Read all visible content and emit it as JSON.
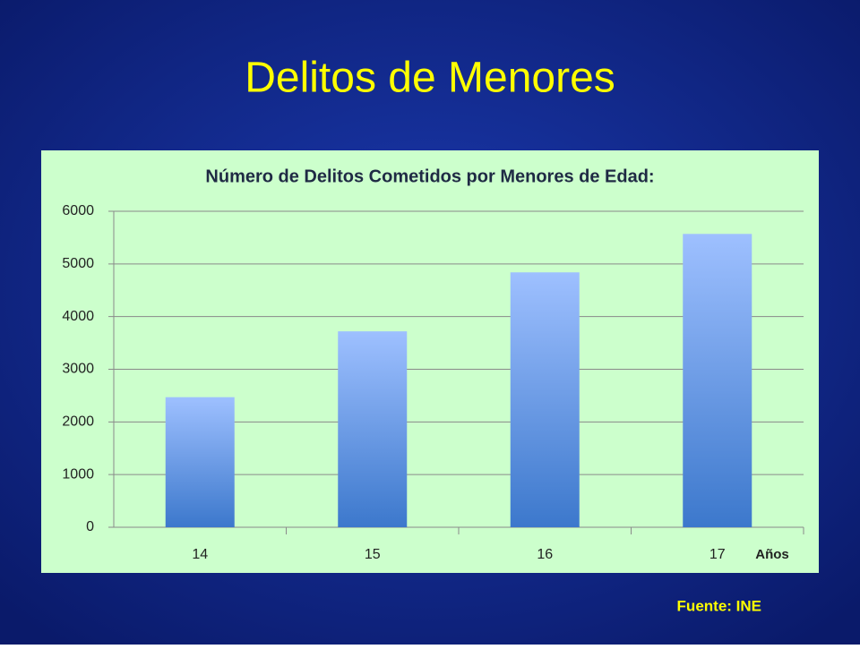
{
  "slide": {
    "title": "Delitos de Menores",
    "source": "Fuente: INE"
  },
  "chart_data": {
    "type": "bar",
    "title": "Número de Delitos Cometidos por Menores de Edad:",
    "x_label": "Años",
    "categories": [
      "14",
      "15",
      "16",
      "17"
    ],
    "values": [
      2470,
      3720,
      4840,
      5570
    ],
    "color": "#4a86d8",
    "ylim": [
      0,
      6000
    ],
    "yticks": [
      0,
      1000,
      2000,
      3000,
      4000,
      5000,
      6000
    ],
    "grid": true
  }
}
